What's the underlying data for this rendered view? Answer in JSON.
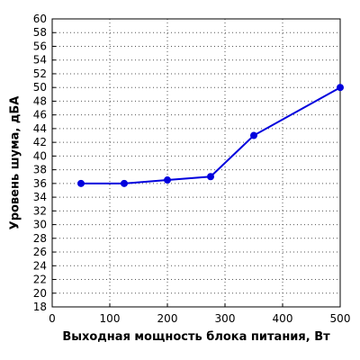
{
  "chart_data": {
    "type": "line",
    "title": "",
    "xlabel": "Выходная мощность блока питания, Вт",
    "ylabel": "Уровень шума, дБА",
    "xlim": [
      0,
      500
    ],
    "ylim": [
      18,
      60
    ],
    "xticks": [
      0,
      100,
      200,
      300,
      400,
      500
    ],
    "yticks": [
      18,
      20,
      22,
      24,
      26,
      28,
      30,
      32,
      34,
      36,
      38,
      40,
      42,
      44,
      46,
      48,
      50,
      52,
      54,
      56,
      58,
      60
    ],
    "grid": true,
    "grid_style": "dotted",
    "legend": "none",
    "series": [
      {
        "color": "#0000dd",
        "x": [
          50,
          125,
          200,
          275,
          350,
          500
        ],
        "y": [
          36,
          36,
          36.5,
          37,
          43,
          50
        ]
      }
    ]
  }
}
